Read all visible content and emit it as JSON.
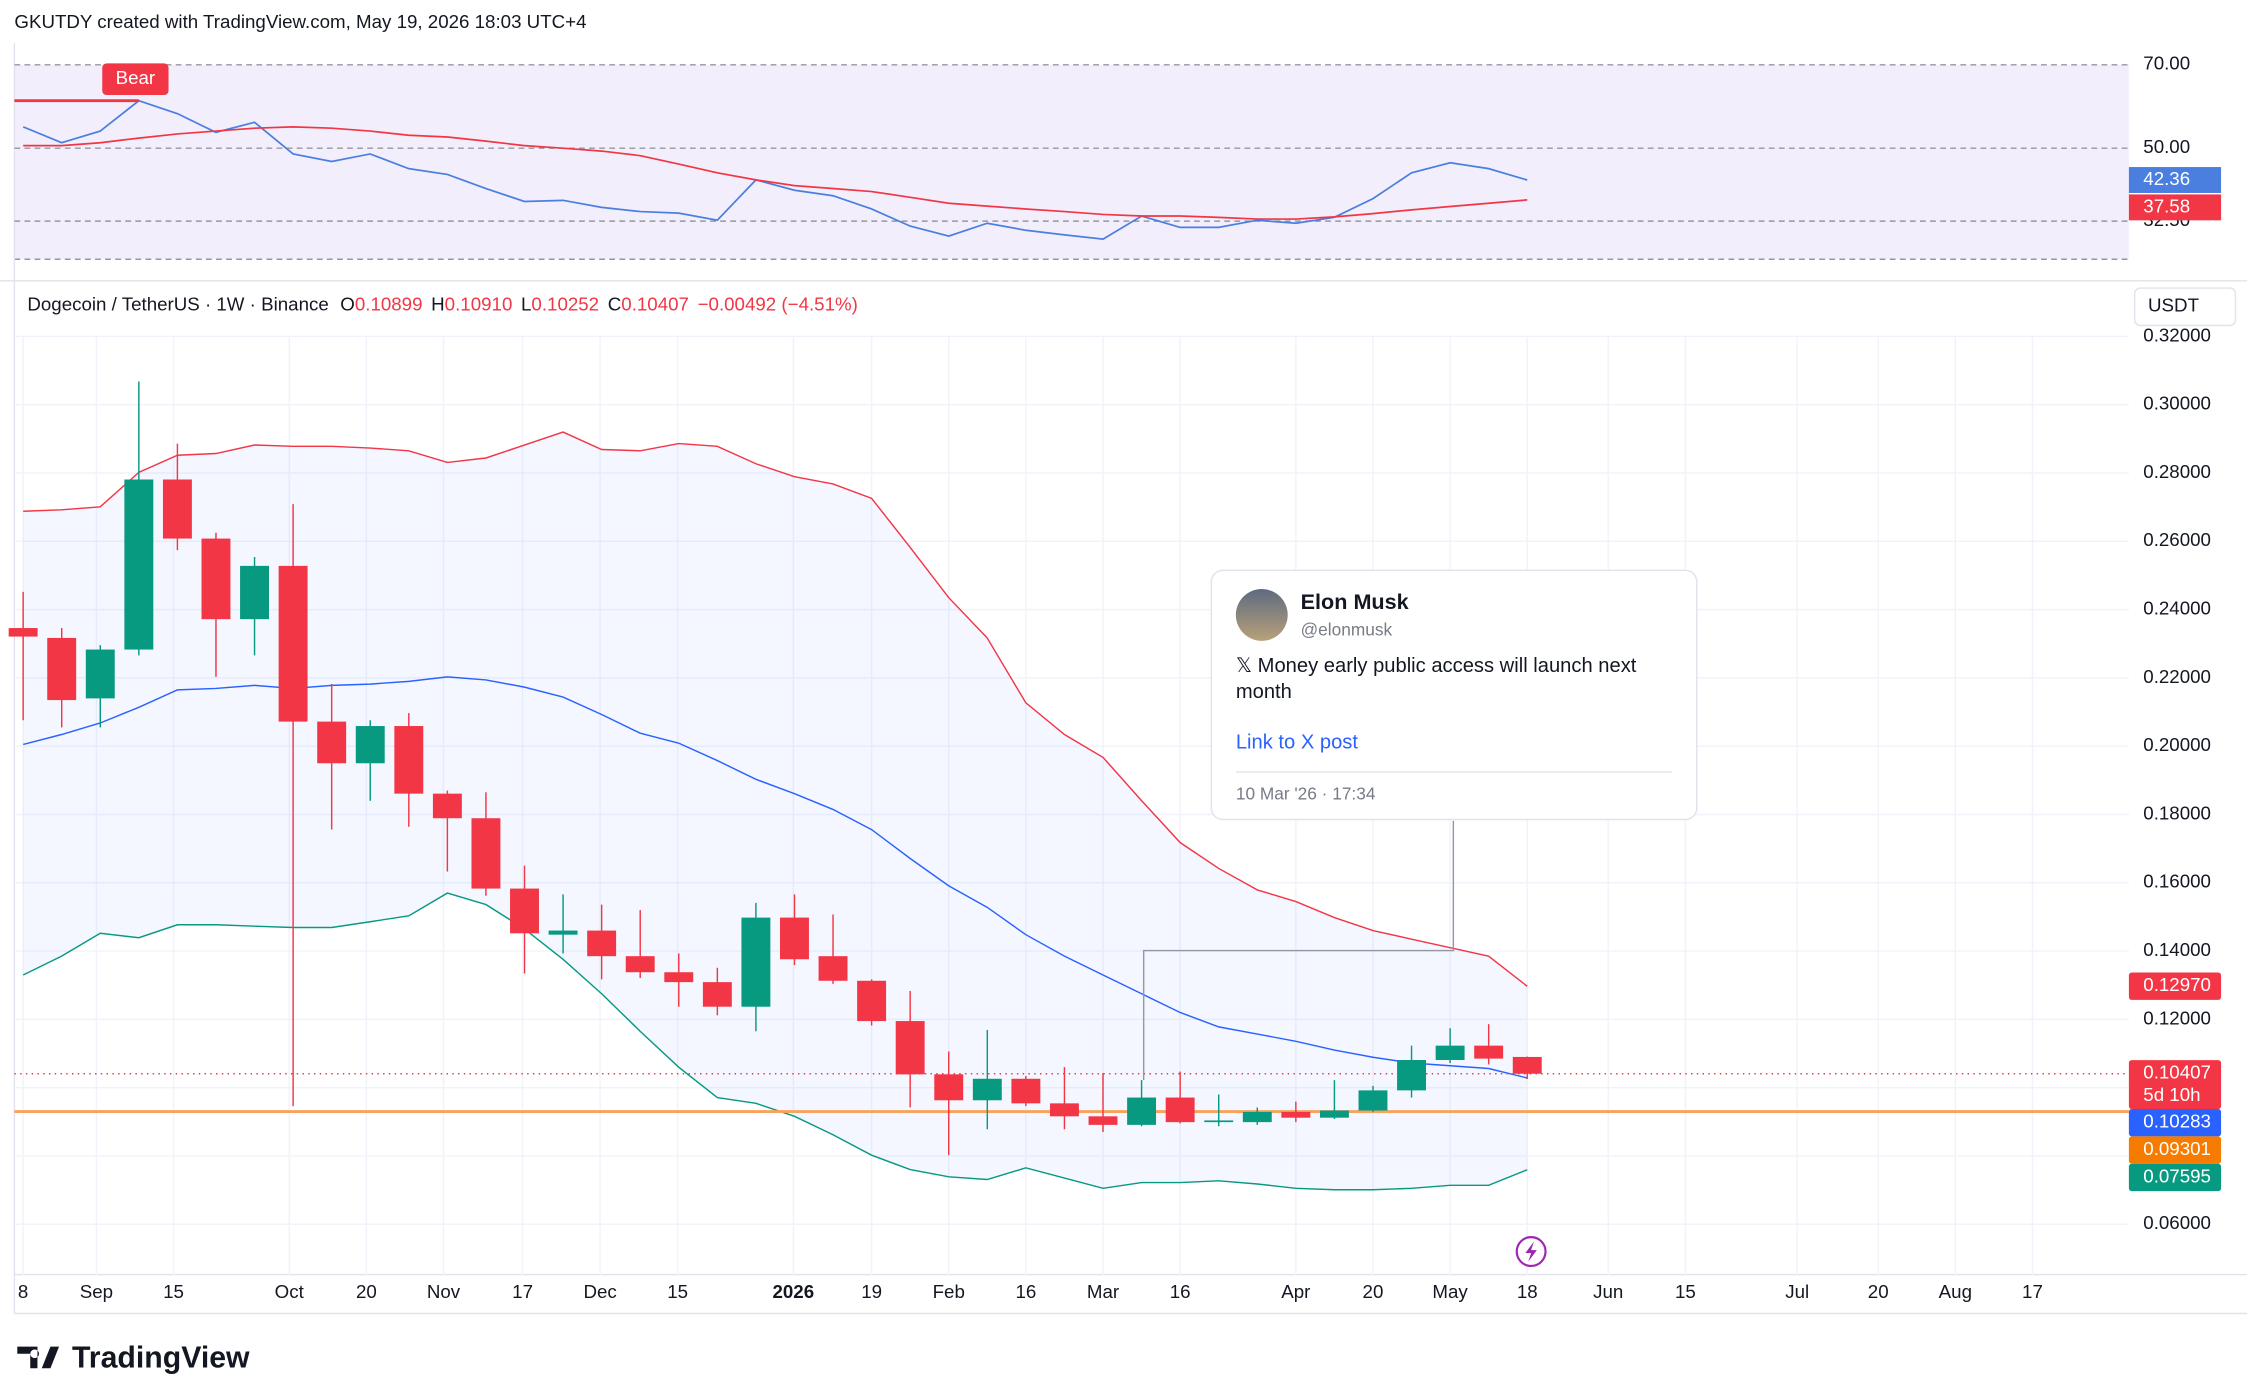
{
  "attribution": "GKUTDY created with TradingView.com, May 19, 2026 18:03 UTC+4",
  "brand": "TradingView",
  "currency_button": "USDT",
  "tweet": {
    "name": "Elon Musk",
    "handle": "@elonmusk",
    "text_lines": [
      "𝕏 Money early public access will launch next",
      "month"
    ],
    "link": "Link to X post",
    "date": "10 Mar '26 · 17:34"
  },
  "chart_data": [
    {
      "type": "line",
      "annotation": "Bear",
      "categories": [
        null,
        null,
        null,
        null,
        null,
        null,
        null,
        null,
        null,
        null,
        null,
        null,
        null,
        null,
        null,
        null,
        null,
        null,
        null,
        null,
        null,
        null,
        null,
        null,
        null,
        null,
        null,
        null,
        null,
        null,
        null,
        null,
        null,
        null,
        null,
        null,
        null,
        null,
        null,
        null
      ],
      "xlim": [
        -0.6,
        54.6
      ],
      "ylim": [
        23.35,
        70
      ],
      "yticks": [
        {
          "value": 70,
          "label": "70.00"
        },
        {
          "value": 50,
          "label": "50.00"
        },
        {
          "value": 32.5,
          "label": "32.50"
        }
      ],
      "series": [
        {
          "color": "#4a7fe0",
          "values": [
            55.1,
            51.3,
            54.1,
            61.4,
            58.3,
            53.8,
            56.2,
            48.6,
            46.8,
            48.6,
            45.1,
            43.7,
            40.3,
            37.2,
            37.5,
            35.8,
            34.8,
            34.4,
            32.7,
            42.4,
            39.9,
            38.6,
            35.4,
            31.3,
            28.9,
            32.0,
            30.3,
            29.2,
            28.2,
            33.7,
            31.0,
            31.0,
            32.7,
            32.0,
            33.4,
            37.9,
            44.1,
            46.5,
            45.1,
            42.36
          ]
        },
        {
          "color": "#f23645",
          "values": [
            50.6,
            50.6,
            51.3,
            52.4,
            53.4,
            54.1,
            54.8,
            55.1,
            54.8,
            54.1,
            53.1,
            52.7,
            51.7,
            50.6,
            50.0,
            49.3,
            48.2,
            46.2,
            44.1,
            42.4,
            41.0,
            40.3,
            39.6,
            38.2,
            36.8,
            36.1,
            35.4,
            34.8,
            34.1,
            33.7,
            33.7,
            33.4,
            33.0,
            33.0,
            33.5,
            34.3,
            35.2,
            36.0,
            36.8,
            37.58
          ]
        }
      ]
    },
    {
      "type": "candlestick",
      "legend": {
        "symbol": "Dogecoin / TetherUS · 1W · Binance",
        "fields": [
          {
            "key": "O",
            "text": "0.10899"
          },
          {
            "key": "H",
            "text": "0.10910"
          },
          {
            "key": "L",
            "text": "0.10252"
          },
          {
            "key": "C",
            "text": "0.10407"
          }
        ],
        "change": "−0.00492 (−4.51%)"
      },
      "categories": [
        null,
        null,
        null,
        null,
        null,
        null,
        null,
        null,
        null,
        null,
        null,
        null,
        null,
        null,
        null,
        null,
        null,
        null,
        null,
        null,
        null,
        null,
        null,
        null,
        null,
        null,
        null,
        null,
        null,
        null,
        null,
        null,
        null,
        null,
        null,
        null,
        null,
        null,
        null,
        null
      ],
      "open": [
        0.2346,
        0.2317,
        0.214,
        0.2283,
        0.2781,
        0.2608,
        0.2372,
        0.2528,
        0.2072,
        0.195,
        0.2059,
        0.1861,
        0.1789,
        0.1583,
        0.1448,
        0.146,
        0.1385,
        0.1338,
        0.1309,
        0.1237,
        0.1498,
        0.1385,
        0.1313,
        0.1195,
        0.1039,
        0.0963,
        0.1026,
        0.0954,
        0.0916,
        0.0891,
        0.0971,
        0.0899,
        0.0899,
        0.0929,
        0.0912,
        0.0933,
        0.0992,
        0.1081,
        0.1123,
        0.10899
      ],
      "high": [
        0.2452,
        0.2346,
        0.2296,
        0.3068,
        0.2886,
        0.2625,
        0.2554,
        0.2709,
        0.2182,
        0.2076,
        0.2097,
        0.187,
        0.1865,
        0.165,
        0.1566,
        0.1536,
        0.152,
        0.1393,
        0.1351,
        0.1541,
        0.1566,
        0.1507,
        0.1317,
        0.1283,
        0.1106,
        0.1169,
        0.1034,
        0.106,
        0.1043,
        0.1022,
        0.1047,
        0.098,
        0.0942,
        0.0959,
        0.1022,
        0.1005,
        0.1123,
        0.1174,
        0.1186,
        0.1091
      ],
      "low": [
        0.2076,
        0.2055,
        0.2055,
        0.2266,
        0.2574,
        0.2203,
        0.2266,
        0.0946,
        0.1756,
        0.184,
        0.1764,
        0.1633,
        0.1562,
        0.1334,
        0.1393,
        0.1317,
        0.1321,
        0.1237,
        0.1212,
        0.1165,
        0.1359,
        0.1304,
        0.1182,
        0.0942,
        0.0802,
        0.0878,
        0.0946,
        0.0878,
        0.087,
        0.0887,
        0.0895,
        0.0887,
        0.0891,
        0.0899,
        0.0908,
        0.0929,
        0.0971,
        0.1072,
        0.1068,
        0.10252
      ],
      "close": [
        0.2321,
        0.2135,
        0.2283,
        0.2781,
        0.2608,
        0.2372,
        0.2528,
        0.2072,
        0.195,
        0.2059,
        0.1861,
        0.1789,
        0.1583,
        0.1452,
        0.146,
        0.1385,
        0.1338,
        0.1309,
        0.1237,
        0.1498,
        0.1376,
        0.1313,
        0.1195,
        0.1039,
        0.0963,
        0.1026,
        0.0954,
        0.0916,
        0.0891,
        0.0971,
        0.0899,
        0.0904,
        0.0929,
        0.0912,
        0.0933,
        0.0992,
        0.1081,
        0.1123,
        0.1085,
        0.10407
      ],
      "up_color": "#089981",
      "down_color": "#f23645",
      "bollinger": {
        "upper": {
          "color": "#f23645",
          "values": [
            0.2688,
            0.2692,
            0.2701,
            0.2802,
            0.2852,
            0.2857,
            0.2882,
            0.2878,
            0.2878,
            0.2873,
            0.2865,
            0.2831,
            0.2844,
            0.2882,
            0.292,
            0.2869,
            0.2865,
            0.2886,
            0.2878,
            0.2827,
            0.2789,
            0.2768,
            0.2726,
            0.2582,
            0.2435,
            0.2317,
            0.2127,
            0.2034,
            0.1967,
            0.184,
            0.1718,
            0.1642,
            0.1579,
            0.1545,
            0.1498,
            0.146,
            0.1435,
            0.141,
            0.1385,
            0.1297
          ]
        },
        "basis": {
          "color": "#2962ff",
          "values": [
            0.2005,
            0.2034,
            0.2068,
            0.2114,
            0.2165,
            0.2169,
            0.2178,
            0.2169,
            0.2178,
            0.2182,
            0.219,
            0.2203,
            0.2194,
            0.2173,
            0.2144,
            0.2093,
            0.2038,
            0.2009,
            0.1958,
            0.1903,
            0.1861,
            0.1815,
            0.1756,
            0.1671,
            0.1591,
            0.1528,
            0.1448,
            0.1385,
            0.133,
            0.1275,
            0.122,
            0.1178,
            0.1157,
            0.1136,
            0.111,
            0.1089,
            0.1072,
            0.1064,
            0.1056,
            0.10283
          ]
        },
        "lower": {
          "color": "#089981",
          "values": [
            0.133,
            0.1385,
            0.1452,
            0.1439,
            0.1477,
            0.1477,
            0.1473,
            0.1469,
            0.1469,
            0.1486,
            0.1503,
            0.157,
            0.1536,
            0.1465,
            0.1376,
            0.1275,
            0.1165,
            0.106,
            0.0971,
            0.0954,
            0.0916,
            0.0862,
            0.0802,
            0.076,
            0.0739,
            0.0731,
            0.0765,
            0.0735,
            0.0705,
            0.0722,
            0.0722,
            0.0727,
            0.0718,
            0.0705,
            0.0701,
            0.0701,
            0.0705,
            0.0714,
            0.0714,
            0.07595
          ]
        }
      },
      "hline": {
        "value": 0.09301,
        "color": "#f7a35c"
      },
      "price_tags": [
        {
          "value": 0.1297,
          "label": "0.12970",
          "color": "#f23645"
        },
        {
          "value": 0.10407,
          "label": "0.10407",
          "sub": "5d 10h",
          "color": "#f23645"
        },
        {
          "value": 0.10283,
          "label": "0.10283",
          "color": "#2962ff"
        },
        {
          "value": 0.09301,
          "label": "0.09301",
          "color": "#f57c00"
        },
        {
          "value": 0.07595,
          "label": "0.07595",
          "color": "#089981"
        }
      ],
      "xlim": [
        -0.6,
        54.6
      ],
      "ylim": [
        0.045,
        0.32
      ],
      "yticks": [
        {
          "value": 0.06,
          "label": "0.06000"
        },
        {
          "value": 0.08,
          "label": "0.08000"
        },
        {
          "value": 0.1,
          "label": "0.10000"
        },
        {
          "value": 0.12,
          "label": "0.12000"
        },
        {
          "value": 0.14,
          "label": "0.14000"
        },
        {
          "value": 0.16,
          "label": "0.16000"
        },
        {
          "value": 0.18,
          "label": "0.18000"
        },
        {
          "value": 0.2,
          "label": "0.20000"
        },
        {
          "value": 0.22,
          "label": "0.22000"
        },
        {
          "value": 0.24,
          "label": "0.24000"
        },
        {
          "value": 0.26,
          "label": "0.26000"
        },
        {
          "value": 0.28,
          "label": "0.28000"
        },
        {
          "value": 0.3,
          "label": "0.30000"
        },
        {
          "value": 0.32,
          "label": "0.32000"
        }
      ],
      "xticks": [
        {
          "value": 0,
          "label": "8"
        },
        {
          "value": 1.9,
          "label": "Sep"
        },
        {
          "value": 3.9,
          "label": "15"
        },
        {
          "value": 6.9,
          "label": "Oct"
        },
        {
          "value": 8.9,
          "label": "20"
        },
        {
          "value": 10.9,
          "label": "Nov"
        },
        {
          "value": 12.95,
          "label": "17"
        },
        {
          "value": 14.96,
          "label": "Dec"
        },
        {
          "value": 16.97,
          "label": "15"
        },
        {
          "value": 19.97,
          "label": "2026",
          "bold": true
        },
        {
          "value": 22,
          "label": "19"
        },
        {
          "value": 24,
          "label": "Feb"
        },
        {
          "value": 26,
          "label": "16"
        },
        {
          "value": 28,
          "label": "Mar"
        },
        {
          "value": 30,
          "label": "16"
        },
        {
          "value": 33,
          "label": "Apr"
        },
        {
          "value": 35,
          "label": "20"
        },
        {
          "value": 37,
          "label": "May"
        },
        {
          "value": 39,
          "label": "18"
        },
        {
          "value": 41.1,
          "label": "Jun"
        },
        {
          "value": 43.1,
          "label": "15"
        },
        {
          "value": 46,
          "label": "Jul"
        },
        {
          "value": 48.1,
          "label": "20"
        },
        {
          "value": 50.1,
          "label": "Aug"
        },
        {
          "value": 52.1,
          "label": "17"
        }
      ]
    }
  ]
}
